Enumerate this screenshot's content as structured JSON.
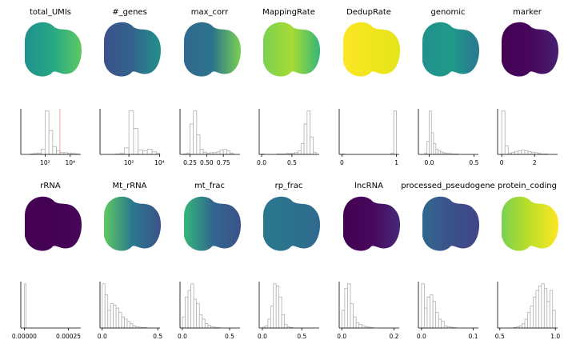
{
  "chart_data": [
    {
      "type": "histogram",
      "title": "total_UMIs",
      "log_x": true,
      "xlim": [
        1.15,
        70000
      ],
      "ylim": [
        0,
        105
      ],
      "xticks": [
        {
          "value": 100,
          "label": "10²"
        },
        {
          "value": 10000,
          "label": "10⁴"
        }
      ],
      "bins": [
        1.6,
        3.2,
        6.3,
        12.6,
        25,
        50,
        100,
        200,
        400,
        800,
        1600,
        3200,
        6300,
        12600,
        25000,
        50000
      ],
      "counts": [
        0,
        0,
        1,
        2,
        3,
        12,
        100,
        55,
        18,
        8,
        4,
        4,
        3,
        2,
        1
      ],
      "vline": 1500,
      "vline_color": "#f4a6a0"
    },
    {
      "type": "histogram",
      "title": "#_genes",
      "log_x": true,
      "xlim": [
        1.3,
        10700
      ],
      "ylim": [
        0,
        105
      ],
      "xticks": [
        {
          "value": 100,
          "label": "10²"
        },
        {
          "value": 10000,
          "label": "10⁴"
        }
      ],
      "bins": [
        1.6,
        3.2,
        6.3,
        12.6,
        25,
        50,
        100,
        200,
        400,
        800,
        1600,
        3200,
        6300,
        10600
      ],
      "counts": [
        0,
        0,
        0,
        1,
        2,
        15,
        100,
        60,
        10,
        8,
        12,
        6,
        3
      ]
    },
    {
      "type": "histogram",
      "title": "max_corr",
      "xlim": [
        0.1,
        1.0
      ],
      "ylim": [
        0,
        105
      ],
      "xticks": [
        0.25,
        {
          "value": 0.5,
          "label": "0.50"
        },
        0.75
      ],
      "bins": [
        0.1,
        0.15,
        0.2,
        0.25,
        0.3,
        0.35,
        0.4,
        0.45,
        0.5,
        0.55,
        0.6,
        0.65,
        0.7,
        0.75,
        0.8,
        0.85,
        0.9,
        0.95,
        1.0
      ],
      "counts": [
        0,
        1,
        3,
        70,
        100,
        45,
        12,
        5,
        3,
        4,
        4,
        6,
        10,
        12,
        8,
        3,
        0,
        0
      ]
    },
    {
      "type": "histogram",
      "title": "MappingRate",
      "xlim": [
        -0.04,
        0.95
      ],
      "ylim": [
        0,
        105
      ],
      "xticks": [
        {
          "value": 0,
          "label": "0.0"
        },
        {
          "value": 0.5,
          "label": "0.5"
        }
      ],
      "bins": [
        0,
        0.05,
        0.1,
        0.15,
        0.2,
        0.25,
        0.3,
        0.35,
        0.4,
        0.45,
        0.5,
        0.55,
        0.6,
        0.65,
        0.7,
        0.75,
        0.8,
        0.85,
        0.9
      ],
      "counts": [
        1,
        0,
        0,
        0,
        0,
        1,
        1,
        1,
        2,
        2,
        3,
        4,
        8,
        25,
        70,
        100,
        40,
        5
      ]
    },
    {
      "type": "histogram",
      "title": "DedupRate",
      "xlim": [
        -0.05,
        1.05
      ],
      "ylim": [
        0,
        105
      ],
      "xticks": [
        0,
        1
      ],
      "bins": [
        0,
        0.05,
        0.1,
        0.15,
        0.2,
        0.25,
        0.3,
        0.35,
        0.4,
        0.45,
        0.5,
        0.55,
        0.6,
        0.65,
        0.7,
        0.75,
        0.8,
        0.85,
        0.9,
        0.95,
        1.0
      ],
      "counts": [
        1,
        0,
        0,
        0,
        0,
        0,
        0,
        0,
        0,
        0,
        0,
        0,
        0,
        0,
        0,
        0,
        0,
        0,
        3,
        100
      ]
    },
    {
      "type": "histogram",
      "title": "genomic",
      "xlim": [
        -0.12,
        0.55
      ],
      "ylim": [
        0,
        105
      ],
      "xticks": [
        {
          "value": 0,
          "label": "0.0"
        },
        {
          "value": 0.5,
          "label": "0.5"
        }
      ],
      "bins": [
        -0.05,
        -0.025,
        0,
        0.025,
        0.05,
        0.075,
        0.1,
        0.125,
        0.15,
        0.175,
        0.2,
        0.225,
        0.25,
        0.275,
        0.3,
        0.325,
        0.35
      ],
      "counts": [
        3,
        30,
        100,
        50,
        25,
        12,
        8,
        6,
        4,
        3,
        2,
        2,
        1,
        1,
        1,
        0
      ]
    },
    {
      "type": "histogram",
      "title": "marker",
      "xlim": [
        -0.25,
        3.4
      ],
      "ylim": [
        0,
        105
      ],
      "xticks": [
        0,
        2
      ],
      "bins": [
        0,
        0.2,
        0.4,
        0.6,
        0.8,
        1.0,
        1.2,
        1.4,
        1.6,
        1.8,
        2.0,
        2.2,
        2.4,
        2.6,
        2.8,
        3.0,
        3.2
      ],
      "counts": [
        100,
        20,
        3,
        5,
        7,
        8,
        10,
        8,
        6,
        5,
        4,
        2,
        1,
        1,
        0,
        0
      ]
    },
    {
      "type": "histogram",
      "title": "rRNA",
      "xlim": [
        -2e-05,
        0.00032
      ],
      "ylim": [
        0,
        105
      ],
      "xticks": [
        {
          "value": 0,
          "label": "0.00000"
        },
        {
          "value": 0.00025,
          "label": "0.00025"
        }
      ],
      "bins": [
        0,
        1e-05
      ],
      "counts": [
        100
      ]
    },
    {
      "type": "histogram",
      "title": "Mt_rRNA",
      "xlim": [
        -0.02,
        0.52
      ],
      "ylim": [
        0,
        105
      ],
      "xticks": [
        {
          "value": 0,
          "label": "0.0"
        },
        {
          "value": 0.5,
          "label": "0.5"
        }
      ],
      "bins": [
        0,
        0.025,
        0.05,
        0.075,
        0.1,
        0.125,
        0.15,
        0.175,
        0.2,
        0.225,
        0.25,
        0.275,
        0.3,
        0.325,
        0.35,
        0.375,
        0.4
      ],
      "counts": [
        100,
        75,
        40,
        55,
        52,
        45,
        35,
        25,
        20,
        15,
        10,
        5,
        3,
        2,
        1,
        1
      ]
    },
    {
      "type": "histogram",
      "title": "mt_frac",
      "xlim": [
        -0.025,
        0.61
      ],
      "ylim": [
        0,
        105
      ],
      "xticks": [
        {
          "value": 0,
          "label": "0.0"
        },
        {
          "value": 0.5,
          "label": "0.5"
        }
      ],
      "bins": [
        0,
        0.03,
        0.06,
        0.09,
        0.12,
        0.15,
        0.18,
        0.21,
        0.24,
        0.27,
        0.3,
        0.33,
        0.36,
        0.39
      ],
      "counts": [
        25,
        70,
        85,
        100,
        65,
        55,
        30,
        20,
        10,
        6,
        3,
        2,
        1
      ]
    },
    {
      "type": "histogram",
      "title": "rp_frac",
      "xlim": [
        -0.04,
        0.72
      ],
      "ylim": [
        0,
        105
      ],
      "xticks": [
        {
          "value": 0,
          "label": "0.0"
        },
        {
          "value": 0.5,
          "label": "0.5"
        }
      ],
      "bins": [
        0,
        0.035,
        0.07,
        0.105,
        0.14,
        0.175,
        0.21,
        0.245,
        0.28,
        0.315,
        0.35,
        0.385
      ],
      "counts": [
        2,
        5,
        20,
        50,
        100,
        95,
        70,
        30,
        8,
        3,
        1
      ]
    },
    {
      "type": "histogram",
      "title": "lncRNA",
      "xlim": [
        -0.01,
        0.22
      ],
      "ylim": [
        0,
        105
      ],
      "xticks": [
        {
          "value": 0,
          "label": "0.0"
        },
        {
          "value": 0.2,
          "label": "0.2"
        }
      ],
      "bins": [
        0,
        0.011,
        0.022,
        0.033,
        0.044,
        0.055,
        0.066,
        0.077,
        0.088,
        0.099,
        0.11,
        0.121
      ],
      "counts": [
        40,
        90,
        100,
        55,
        25,
        12,
        8,
        5,
        3,
        2,
        1
      ]
    },
    {
      "type": "histogram",
      "title": "processed_pseudogene",
      "xlim": [
        -0.006,
        0.11
      ],
      "ylim": [
        0,
        105
      ],
      "xticks": [
        {
          "value": 0,
          "label": "0.0"
        },
        {
          "value": 0.1,
          "label": "0.1"
        }
      ],
      "bins": [
        0,
        0.0055,
        0.011,
        0.0165,
        0.022,
        0.0275,
        0.033,
        0.0385,
        0.044,
        0.0495,
        0.055,
        0.0605,
        0.066
      ],
      "counts": [
        100,
        45,
        70,
        75,
        60,
        35,
        20,
        15,
        5,
        3,
        2,
        1
      ]
    },
    {
      "type": "histogram",
      "title": "protein_coding",
      "xlim": [
        0.48,
        1.02
      ],
      "ylim": [
        0,
        105
      ],
      "xticks": [
        {
          "value": 0.5,
          "label": "0.5"
        },
        {
          "value": 1,
          "label": "1.0"
        }
      ],
      "bins": [
        0.625,
        0.65,
        0.675,
        0.7,
        0.725,
        0.75,
        0.775,
        0.8,
        0.825,
        0.85,
        0.875,
        0.9,
        0.925,
        0.95,
        0.975,
        1.0
      ],
      "counts": [
        1,
        3,
        5,
        10,
        20,
        35,
        50,
        70,
        85,
        95,
        100,
        90,
        60,
        85,
        40
      ]
    }
  ]
}
